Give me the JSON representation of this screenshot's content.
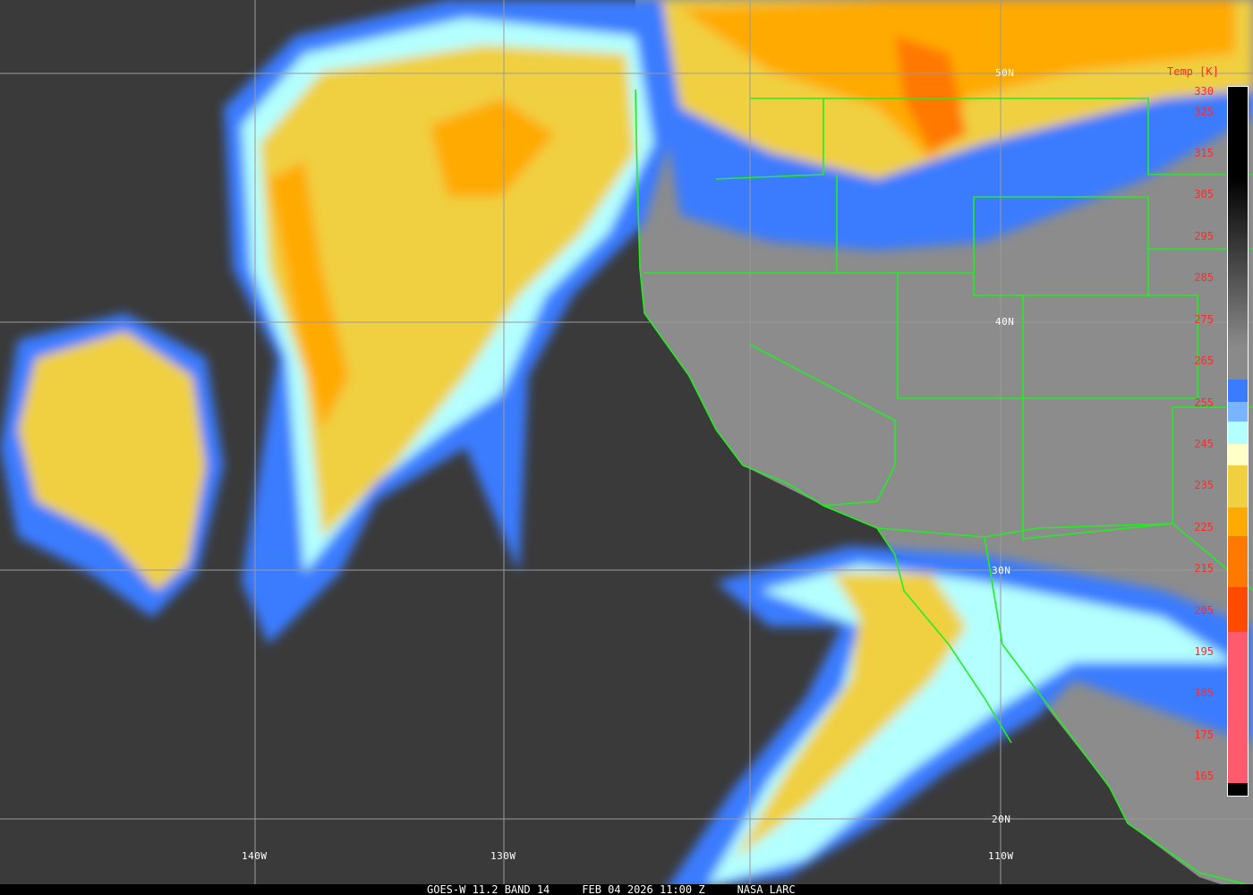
{
  "caption": {
    "satellite": "GOES-W 11.2 BAND 14",
    "datetime": "FEB 04 2026 11:00 Z",
    "source": "NASA LARC"
  },
  "latitude_labels": [
    "50N",
    "40N",
    "30N",
    "20N"
  ],
  "longitude_labels": [
    "140W",
    "130W",
    "110W"
  ],
  "colorbar": {
    "title": "Temp [K]",
    "ticks": [
      "330",
      "325",
      "315",
      "305",
      "295",
      "285",
      "275",
      "265",
      "255",
      "245",
      "235",
      "225",
      "215",
      "205",
      "195",
      "185",
      "175",
      "165"
    ],
    "colors": {
      "warm": "#000000",
      "mid": "#8a8a8a",
      "blue": "#3a7bff",
      "light_blue": "#78b4ff",
      "cyan": "#b4ffff",
      "cream": "#ffffc8",
      "yellow": "#f0d040",
      "orange": "#ffaa00",
      "dark_orange": "#ff7800",
      "red_orange": "#ff4a00",
      "pink": "#ff5a6e"
    }
  },
  "map_colors": {
    "ocean": "#3a3a3a",
    "land": "#8c8c8c",
    "boundaries": "#22ee22",
    "grid": "#9a9a9a",
    "tick_labels": "#ff2a2a"
  }
}
